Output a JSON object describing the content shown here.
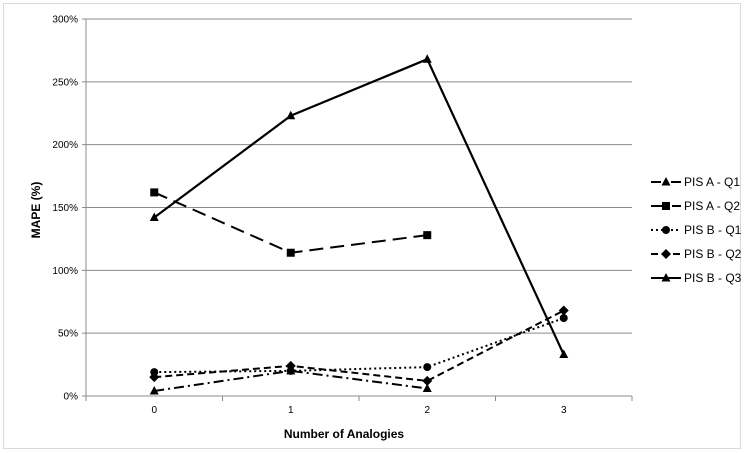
{
  "chart_data": {
    "type": "line",
    "title": "",
    "xlabel": "Number of Analogies",
    "ylabel": "MAPE (%)",
    "categories": [
      "0",
      "1",
      "2",
      "3"
    ],
    "ylim": [
      0,
      300
    ],
    "yticks": [
      "0%",
      "50%",
      "100%",
      "150%",
      "200%",
      "250%",
      "300%"
    ],
    "grid": "horizontal",
    "legend_position": "right",
    "series": [
      {
        "name": "PIS A - Q1",
        "marker": "triangle",
        "dash": "dash-dot",
        "values": [
          4,
          20,
          6,
          null
        ]
      },
      {
        "name": "PIS A - Q2",
        "marker": "square",
        "dash": "long-dash",
        "values": [
          162,
          114,
          128,
          null
        ]
      },
      {
        "name": "PIS B - Q1",
        "marker": "circle",
        "dash": "dotted",
        "values": [
          19,
          20,
          23,
          62
        ]
      },
      {
        "name": "PIS B - Q2",
        "marker": "diamond",
        "dash": "dashed",
        "values": [
          15,
          24,
          12,
          68
        ]
      },
      {
        "name": "PIS B - Q3",
        "marker": "triangle",
        "dash": "solid",
        "values": [
          142,
          223,
          268,
          33
        ]
      }
    ],
    "line_color": "#000000",
    "grid_color": "#8c8c8c"
  }
}
